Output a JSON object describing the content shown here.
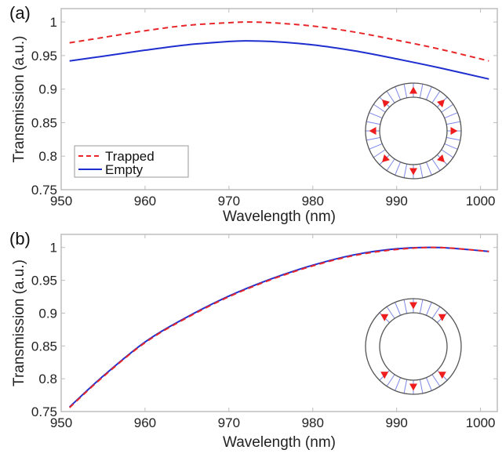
{
  "chart_data": [
    {
      "panel_label": "(a)",
      "type": "line",
      "xlabel": "Wavelength (nm)",
      "ylabel": "Transmission (a.u.)",
      "xlim": [
        950,
        1002
      ],
      "ylim": [
        0.75,
        1.02
      ],
      "xticks": [
        950,
        960,
        970,
        980,
        990,
        1000
      ],
      "xtick_labels": [
        "950",
        "960",
        "970",
        "980",
        "990",
        "1000"
      ],
      "yticks": [
        0.75,
        0.8,
        0.85,
        0.9,
        0.95,
        1
      ],
      "ytick_labels": [
        "0.75",
        "0.8",
        "0.85",
        "0.9",
        "0.95",
        "1"
      ],
      "legend_position": "bottom-left",
      "grid": false,
      "inset": "ring with outward arrows in all directions",
      "x": [
        951,
        955,
        960,
        965,
        970,
        972,
        975,
        980,
        985,
        990,
        995,
        1001
      ],
      "series": [
        {
          "name": "Trapped",
          "color": "#e8262a",
          "style": "dashed",
          "values": [
            0.969,
            0.977,
            0.987,
            0.995,
            0.999,
            1.0,
            0.999,
            0.994,
            0.985,
            0.973,
            0.96,
            0.942
          ]
        },
        {
          "name": "Empty",
          "color": "#1f2fcf",
          "style": "solid",
          "values": [
            0.942,
            0.949,
            0.958,
            0.966,
            0.971,
            0.972,
            0.971,
            0.966,
            0.957,
            0.945,
            0.932,
            0.915
          ]
        }
      ]
    },
    {
      "panel_label": "(b)",
      "type": "line",
      "xlabel": "Wavelength (nm)",
      "ylabel": "Transmission (a.u.)",
      "xlim": [
        950,
        1002
      ],
      "ylim": [
        0.75,
        1.02
      ],
      "xticks": [
        950,
        960,
        970,
        980,
        990,
        1000
      ],
      "xtick_labels": [
        "950",
        "960",
        "970",
        "980",
        "990",
        "1000"
      ],
      "yticks": [
        0.75,
        0.8,
        0.85,
        0.9,
        0.95,
        1
      ],
      "ytick_labels": [
        "0.75",
        "0.8",
        "0.85",
        "0.9",
        "0.95",
        "1"
      ],
      "grid": false,
      "inset": "ring with downward arrows at top and bottom",
      "x": [
        951,
        955,
        960,
        965,
        970,
        975,
        980,
        985,
        990,
        995,
        1001
      ],
      "series": [
        {
          "name": "Trapped",
          "color": "#e8262a",
          "style": "dashed",
          "values": [
            0.756,
            0.803,
            0.855,
            0.893,
            0.925,
            0.951,
            0.972,
            0.988,
            0.997,
            1.0,
            0.994
          ]
        },
        {
          "name": "Empty",
          "color": "#1f2fcf",
          "style": "solid",
          "values": [
            0.757,
            0.804,
            0.856,
            0.894,
            0.926,
            0.952,
            0.973,
            0.989,
            0.998,
            1.0,
            0.994
          ]
        }
      ]
    }
  ]
}
